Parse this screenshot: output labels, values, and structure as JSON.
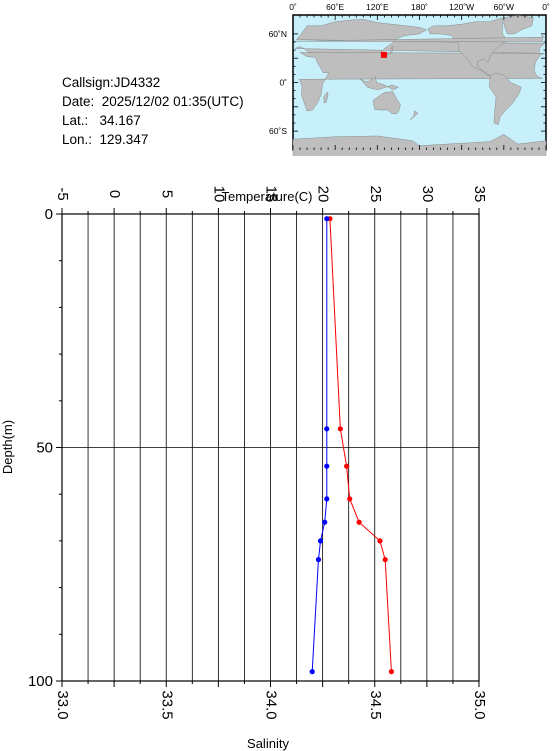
{
  "info": {
    "callsign": "Callsign:JD4332",
    "date": "Date:  2025/12/02 01:35(UTC)",
    "lat": "Lat.:   34.167",
    "lon": "Lon.:  129.347"
  },
  "map": {
    "top_labels": [
      "0˚",
      "60˚E",
      "120˚E",
      "180˚",
      "120˚W",
      "60˚W",
      "0˚"
    ],
    "left_labels": [
      "60˚N",
      "0˚",
      "60˚S"
    ],
    "ocean_color": "#c8f0fa",
    "land_color": "#bebebe",
    "marker_color": "#ff0000",
    "marker": {
      "lon": 129.347,
      "lat": 34.167
    }
  },
  "chart_data": {
    "type": "line",
    "title": "",
    "temperature_axis": {
      "label": "Temperature(C)",
      "range": [
        -5,
        35
      ],
      "ticks": [
        "-5",
        "0",
        "5",
        "10",
        "15",
        "20",
        "25",
        "30",
        "35"
      ]
    },
    "salinity_axis": {
      "label": "Salinity",
      "range": [
        33.0,
        35.0
      ],
      "ticks": [
        "33.0",
        "33.5",
        "34.0",
        "34.5",
        "35.0"
      ]
    },
    "depth_axis": {
      "label": "Depth(m)",
      "range": [
        0,
        100
      ],
      "inverted": true,
      "ticks": [
        "0",
        "50",
        "100"
      ]
    },
    "grid": true,
    "series": [
      {
        "quantity": "temperature",
        "color": "#ff0000",
        "points": [
          {
            "depth": 1,
            "value": 20.7
          },
          {
            "depth": 46,
            "value": 21.7
          },
          {
            "depth": 54,
            "value": 22.3
          },
          {
            "depth": 61,
            "value": 22.6
          },
          {
            "depth": 66,
            "value": 23.5
          },
          {
            "depth": 70,
            "value": 25.5
          },
          {
            "depth": 74,
            "value": 26.0
          },
          {
            "depth": 98,
            "value": 26.6
          }
        ]
      },
      {
        "quantity": "salinity",
        "color": "#0000ff",
        "points": [
          {
            "depth": 1,
            "value": 34.27
          },
          {
            "depth": 46,
            "value": 34.27
          },
          {
            "depth": 54,
            "value": 34.27
          },
          {
            "depth": 61,
            "value": 34.27
          },
          {
            "depth": 66,
            "value": 34.26
          },
          {
            "depth": 70,
            "value": 34.24
          },
          {
            "depth": 74,
            "value": 34.23
          },
          {
            "depth": 98,
            "value": 34.2
          }
        ]
      }
    ]
  }
}
